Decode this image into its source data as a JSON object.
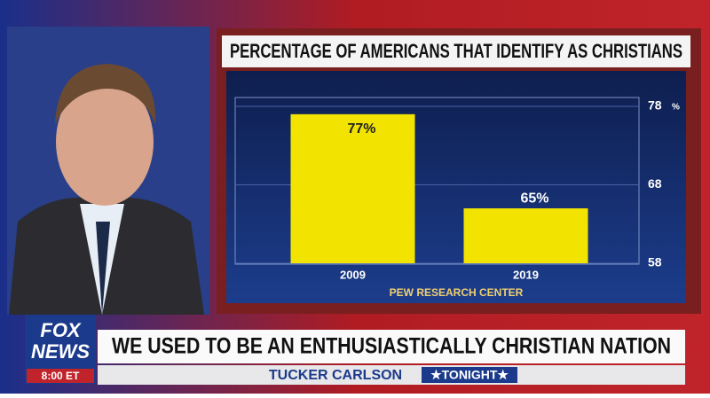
{
  "chart_data": {
    "type": "bar",
    "title": "PERCENTAGE OF AMERICANS THAT IDENTIFY AS CHRISTIANS",
    "categories": [
      "2009",
      "2019"
    ],
    "values": [
      77,
      65
    ],
    "value_labels": [
      "77%",
      "65%"
    ],
    "color": "#f2e400",
    "ylim": [
      58,
      78
    ],
    "yticks": [
      58,
      68,
      78
    ],
    "y_unit": "%",
    "grid": true,
    "source": "PEW RESEARCH CENTER"
  },
  "broadcast": {
    "logo_top": "FOX",
    "logo_bottom": "NEWS",
    "time": "8:00 ET",
    "headline": "WE USED TO BE AN ENTHUSIASTICALLY CHRISTIAN NATION",
    "show_name": "TUCKER CARLSON",
    "show_tag": "★TONIGHT★"
  }
}
